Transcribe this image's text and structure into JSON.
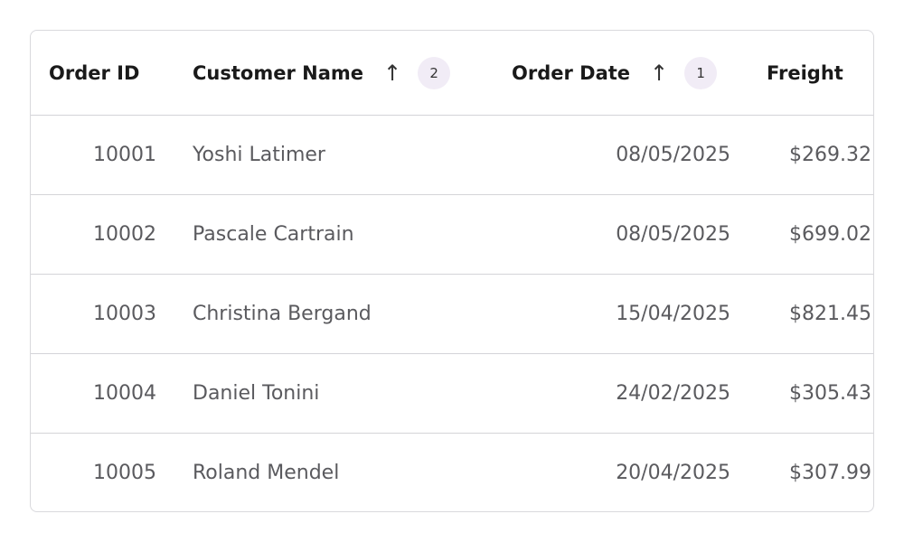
{
  "columns": [
    {
      "label": "Order ID"
    },
    {
      "label": "Customer Name",
      "sort": "ascending",
      "sort_order": "2"
    },
    {
      "label": "Order Date",
      "sort": "ascending",
      "sort_order": "1"
    },
    {
      "label": "Freight"
    }
  ],
  "rows": [
    {
      "order_id": "10001",
      "customer": "Yoshi Latimer",
      "date": "08/05/2025",
      "freight": "$269.32"
    },
    {
      "order_id": "10002",
      "customer": "Pascale Cartrain",
      "date": "08/05/2025",
      "freight": "$699.02"
    },
    {
      "order_id": "10003",
      "customer": "Christina Bergand",
      "date": "15/04/2025",
      "freight": "$821.45"
    },
    {
      "order_id": "10004",
      "customer": "Daniel Tonini",
      "date": "24/02/2025",
      "freight": "$305.43"
    },
    {
      "order_id": "10005",
      "customer": "Roland Mendel",
      "date": "20/04/2025",
      "freight": "$307.99"
    }
  ],
  "icons": {
    "sort": "arrow-up-icon"
  },
  "colors": {
    "badge_bg": "#f1ecf6",
    "border": "#d4d4d8"
  }
}
